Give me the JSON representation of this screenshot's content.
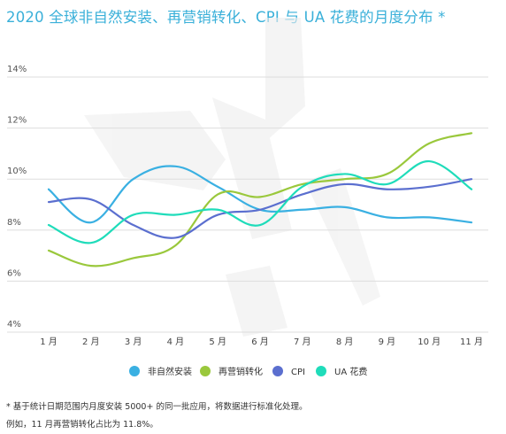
{
  "title": "2020 全球非自然安装、再营销转化、CPI 与 UA 花费的月度分布 *",
  "chart_data": {
    "type": "line",
    "title": "2020 全球非自然安装、再营销转化、CPI 与 UA 花费的月度分布 *",
    "xlabel": "",
    "ylabel": "",
    "categories": [
      "1 月",
      "2 月",
      "3 月",
      "4 月",
      "5 月",
      "6 月",
      "7 月",
      "8 月",
      "9 月",
      "10 月",
      "11 月"
    ],
    "y_ticks": [
      "4%",
      "6%",
      "8%",
      "10%",
      "12%",
      "14%"
    ],
    "ylim": [
      4,
      14
    ],
    "grid": "horizontal",
    "legend_position": "bottom",
    "series": [
      {
        "name": "非自然安装",
        "color": "#3ab0e2",
        "values": [
          9.6,
          8.3,
          10.0,
          10.5,
          9.7,
          8.8,
          8.8,
          8.9,
          8.5,
          8.5,
          8.3
        ]
      },
      {
        "name": "再营销转化",
        "color": "#9ac83c",
        "values": [
          7.2,
          6.6,
          6.9,
          7.4,
          9.4,
          9.3,
          9.8,
          10.0,
          10.2,
          11.4,
          11.8
        ]
      },
      {
        "name": "CPI",
        "color": "#5b6fcf",
        "values": [
          9.1,
          9.2,
          8.2,
          7.7,
          8.6,
          8.8,
          9.4,
          9.8,
          9.6,
          9.7,
          10.0
        ]
      },
      {
        "name": "UA 花费",
        "color": "#1fdcba",
        "values": [
          8.2,
          7.5,
          8.6,
          8.6,
          8.8,
          8.2,
          9.7,
          10.2,
          9.8,
          10.7,
          9.6
        ]
      }
    ]
  },
  "notes": {
    "line1": "* 基于统计日期范围内月度安装 5000+ 的同一批应用，将数据进行标准化处理。",
    "line2": "例如，11 月再营销转化占比为 11.8%。"
  }
}
